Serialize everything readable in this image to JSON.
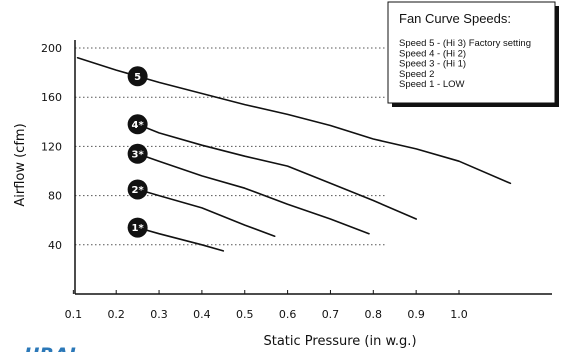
{
  "chart_data": {
    "type": "line",
    "xlabel": "Static Pressure (in w.g.)",
    "ylabel": "Airflow (cfm)",
    "xlim": [
      0,
      1.2
    ],
    "ylim": [
      0,
      200
    ],
    "x_ticks": [
      0.1,
      0.2,
      0.3,
      0.4,
      0.5,
      0.6,
      0.7,
      0.8,
      0.9,
      1.0
    ],
    "x_tick_labels": [
      "0.1",
      "0.2",
      "0.3",
      "0.4",
      "0.5",
      "0.6",
      "0.7",
      "0.8",
      "0.9",
      "1.0"
    ],
    "y_ticks": [
      40,
      80,
      120,
      160,
      200
    ],
    "y_tick_labels": [
      "40",
      "80",
      "120",
      "160",
      "200"
    ],
    "grid": "horizontal dotted",
    "legend": {
      "position": "top-right",
      "title": "Fan Curve Speeds:",
      "entries": [
        "Speed 5 - (Hi 3) Factory setting",
        "Speed 4 - (Hi 2)",
        "Speed 3 - (Hi 1)",
        "Speed 2",
        "Speed 1 - LOW"
      ]
    },
    "series": [
      {
        "label": "5",
        "points": [
          [
            0.11,
            192
          ],
          [
            0.2,
            182
          ],
          [
            0.3,
            172
          ],
          [
            0.4,
            163
          ],
          [
            0.5,
            154
          ],
          [
            0.6,
            146
          ],
          [
            0.7,
            137
          ],
          [
            0.8,
            126
          ],
          [
            0.9,
            118
          ],
          [
            1.0,
            108
          ],
          [
            1.12,
            90
          ]
        ]
      },
      {
        "label": "4*",
        "points": [
          [
            0.25,
            138
          ],
          [
            0.3,
            131
          ],
          [
            0.4,
            121
          ],
          [
            0.5,
            112
          ],
          [
            0.6,
            104
          ],
          [
            0.7,
            90
          ],
          [
            0.8,
            76
          ],
          [
            0.9,
            61
          ]
        ]
      },
      {
        "label": "3*",
        "points": [
          [
            0.25,
            114
          ],
          [
            0.3,
            108
          ],
          [
            0.4,
            96
          ],
          [
            0.5,
            86
          ],
          [
            0.6,
            73
          ],
          [
            0.7,
            61
          ],
          [
            0.79,
            49
          ]
        ]
      },
      {
        "label": "2*",
        "points": [
          [
            0.25,
            85
          ],
          [
            0.3,
            80
          ],
          [
            0.4,
            70
          ],
          [
            0.5,
            56
          ],
          [
            0.57,
            47
          ]
        ]
      },
      {
        "label": "1*",
        "points": [
          [
            0.25,
            54
          ],
          [
            0.3,
            49
          ],
          [
            0.4,
            40
          ],
          [
            0.45,
            35
          ]
        ]
      }
    ],
    "colors": {
      "line": "#111111",
      "marker": "#111111",
      "marker_text": "#ffffff",
      "grid": "#555555"
    }
  },
  "logo": {
    "text": "URAL",
    "color": "#2b78b8"
  }
}
